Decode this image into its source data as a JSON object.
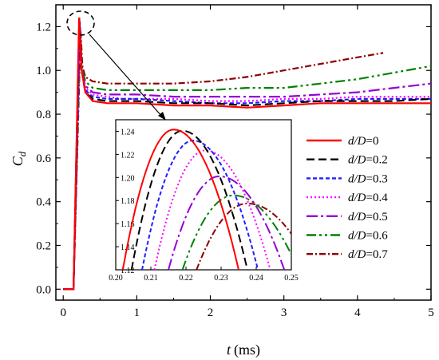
{
  "chart_data": {
    "type": "line",
    "xlabel": "t",
    "xlabel_unit": "(ms)",
    "ylabel": "C",
    "ylabel_sub": "d",
    "xlim": [
      -0.1,
      5
    ],
    "ylim": [
      -0.05,
      1.3
    ],
    "xticks": [
      "0",
      "1",
      "2",
      "3",
      "4",
      "5"
    ],
    "yticks": [
      "0.0",
      "0.2",
      "0.4",
      "0.6",
      "0.8",
      "1.0",
      "1.2"
    ],
    "legend_position": "right",
    "series": [
      {
        "name": "d/D=0",
        "label_var": "d/D",
        "label_val": "=0",
        "color": "#ff0000",
        "dash": "solid",
        "x": [
          0,
          0.14,
          0.216,
          0.25,
          0.3,
          0.4,
          0.6,
          0.8,
          1,
          1.5,
          2,
          2.5,
          3,
          3.5,
          4,
          4.5,
          5
        ],
        "y": [
          0,
          0,
          1.242,
          1.0,
          0.9,
          0.86,
          0.85,
          0.85,
          0.85,
          0.84,
          0.84,
          0.83,
          0.84,
          0.85,
          0.85,
          0.85,
          0.85
        ],
        "inset_peak": [
          0.2165,
          1.2415
        ],
        "inset_half": [
          0.0145,
          0.0185
        ]
      },
      {
        "name": "d/D=0.2",
        "label_var": "d/D",
        "label_val": "=0.2",
        "color": "#000000",
        "dash": "10 5",
        "x": [
          0,
          0.14,
          0.219,
          0.25,
          0.3,
          0.4,
          0.6,
          0.8,
          1,
          1.5,
          2,
          2.5,
          3,
          3.5,
          4,
          4.5,
          5
        ],
        "y": [
          0,
          0,
          1.24,
          1.0,
          0.9,
          0.87,
          0.86,
          0.86,
          0.86,
          0.85,
          0.85,
          0.84,
          0.85,
          0.86,
          0.86,
          0.86,
          0.87
        ],
        "inset_peak": [
          0.219,
          1.2405
        ],
        "inset_half": [
          0.0145,
          0.0185
        ]
      },
      {
        "name": "d/D=0.3",
        "label_var": "d/D",
        "label_val": "=0.3",
        "color": "#1f1fff",
        "dash": "5 3",
        "x": [
          0,
          0.14,
          0.222,
          0.25,
          0.3,
          0.4,
          0.6,
          0.8,
          1,
          1.5,
          2,
          2.5,
          3,
          3.5,
          4,
          4.5,
          5
        ],
        "y": [
          0,
          0,
          1.232,
          1.0,
          0.91,
          0.88,
          0.87,
          0.87,
          0.87,
          0.86,
          0.85,
          0.85,
          0.86,
          0.86,
          0.87,
          0.87,
          0.87
        ],
        "inset_peak": [
          0.222,
          1.232
        ],
        "inset_half": [
          0.0145,
          0.0185
        ]
      },
      {
        "name": "d/D=0.4",
        "label_var": "d/D",
        "label_val": "=0.4",
        "color": "#ff00ff",
        "dash": "2 3",
        "x": [
          0,
          0.14,
          0.225,
          0.25,
          0.3,
          0.4,
          0.6,
          0.8,
          1,
          1.5,
          2,
          2.5,
          3,
          3.5,
          4,
          4.5,
          5
        ],
        "y": [
          0,
          0,
          1.224,
          1.0,
          0.92,
          0.89,
          0.88,
          0.87,
          0.87,
          0.87,
          0.86,
          0.86,
          0.87,
          0.87,
          0.88,
          0.88,
          0.88
        ],
        "inset_peak": [
          0.2255,
          1.2235
        ],
        "inset_half": [
          0.0145,
          0.0185
        ]
      },
      {
        "name": "d/D=0.5",
        "label_var": "d/D",
        "label_val": "=0.5",
        "color": "#9400d3",
        "dash": "14 4 3 4",
        "x": [
          0,
          0.14,
          0.229,
          0.25,
          0.3,
          0.4,
          0.6,
          0.8,
          1,
          1.5,
          2,
          2.5,
          3,
          3.5,
          4,
          4.5,
          5
        ],
        "y": [
          0,
          0,
          1.2,
          1.0,
          0.93,
          0.9,
          0.89,
          0.89,
          0.89,
          0.88,
          0.88,
          0.88,
          0.88,
          0.89,
          0.9,
          0.92,
          0.94
        ],
        "inset_peak": [
          0.2295,
          1.201
        ],
        "inset_half": [
          0.0145,
          0.0185
        ]
      },
      {
        "name": "d/D=0.6",
        "label_var": "d/D",
        "label_val": "=0.6",
        "color": "#008000",
        "dash": "12 4 3 4 3 4",
        "x": [
          0,
          0.14,
          0.232,
          0.25,
          0.3,
          0.4,
          0.6,
          0.8,
          1,
          1.5,
          2,
          2.5,
          3,
          3.5,
          4,
          4.5,
          5
        ],
        "y": [
          0,
          0,
          1.185,
          1.02,
          0.95,
          0.92,
          0.91,
          0.91,
          0.91,
          0.91,
          0.91,
          0.92,
          0.92,
          0.94,
          0.96,
          0.99,
          1.02
        ],
        "inset_peak": [
          0.2335,
          1.1845
        ],
        "inset_half": [
          0.0145,
          0.0185
        ]
      },
      {
        "name": "d/D=0.7",
        "label_var": "d/D",
        "label_val": "=0.7",
        "color": "#8b0000",
        "dash": "8 3 2 3",
        "x": [
          0,
          0.14,
          0.236,
          0.26,
          0.3,
          0.4,
          0.6,
          0.8,
          1,
          1.5,
          2,
          2.5,
          3,
          3.5,
          4,
          4.35
        ],
        "y": [
          0,
          0,
          1.178,
          1.02,
          0.97,
          0.95,
          0.94,
          0.94,
          0.94,
          0.94,
          0.95,
          0.97,
          1.0,
          1.03,
          1.06,
          1.08
        ],
        "inset_peak": [
          0.2375,
          1.1775
        ],
        "inset_half": [
          0.0145,
          0.0185
        ]
      }
    ],
    "inset": {
      "xlim": [
        0.2,
        0.25
      ],
      "ylim": [
        1.12,
        1.25
      ],
      "xticks": [
        "0.20",
        "0.21",
        "0.22",
        "0.23",
        "0.24",
        "0.25"
      ],
      "yticks": [
        "1.12",
        "1.14",
        "1.16",
        "1.18",
        "1.20",
        "1.22",
        "1.24"
      ]
    }
  }
}
